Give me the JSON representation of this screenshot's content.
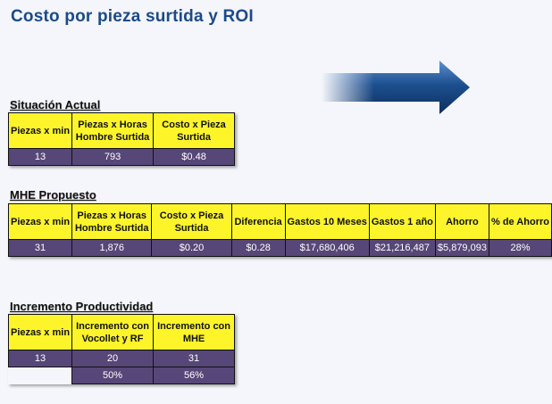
{
  "title": "Costo por pieza surtida y ROI",
  "situacion_actual": {
    "label": "Situación Actual",
    "headers": [
      "Piezas x min",
      "Piezas x Horas Hombre Surtida",
      "Costo x Pieza Surtida"
    ],
    "values": [
      "13",
      "793",
      "$0.48"
    ]
  },
  "mhe_propuesto": {
    "label": "MHE Propuesto",
    "headers": [
      "Piezas x min",
      "Piezas x Horas Hombre Surtida",
      "Costo x Pieza Surtida",
      "Diferencia",
      "Gastos 10 Meses",
      "Gastos 1 año",
      "Ahorro",
      "% de Ahorro"
    ],
    "values": [
      "31",
      "1,876",
      "$0.20",
      "$0.28",
      "$17,680,406",
      "$21,216,487",
      "$5,879,093",
      "28%"
    ]
  },
  "incremento_productividad": {
    "label": "Incremento Productividad",
    "headers": [
      "Piezas x min",
      "Incremento con Vocollet y RF",
      "Incremento con MHE"
    ],
    "values": [
      "13",
      "20",
      "31"
    ],
    "percent_row": [
      "50%",
      "56%"
    ]
  },
  "colors": {
    "title": "#1b4a8a",
    "header_fill": "#fdf42a",
    "value_fill": "#574778",
    "arrow": "#1c4f8e"
  },
  "icons": {
    "arrow": "right-arrow-icon"
  }
}
